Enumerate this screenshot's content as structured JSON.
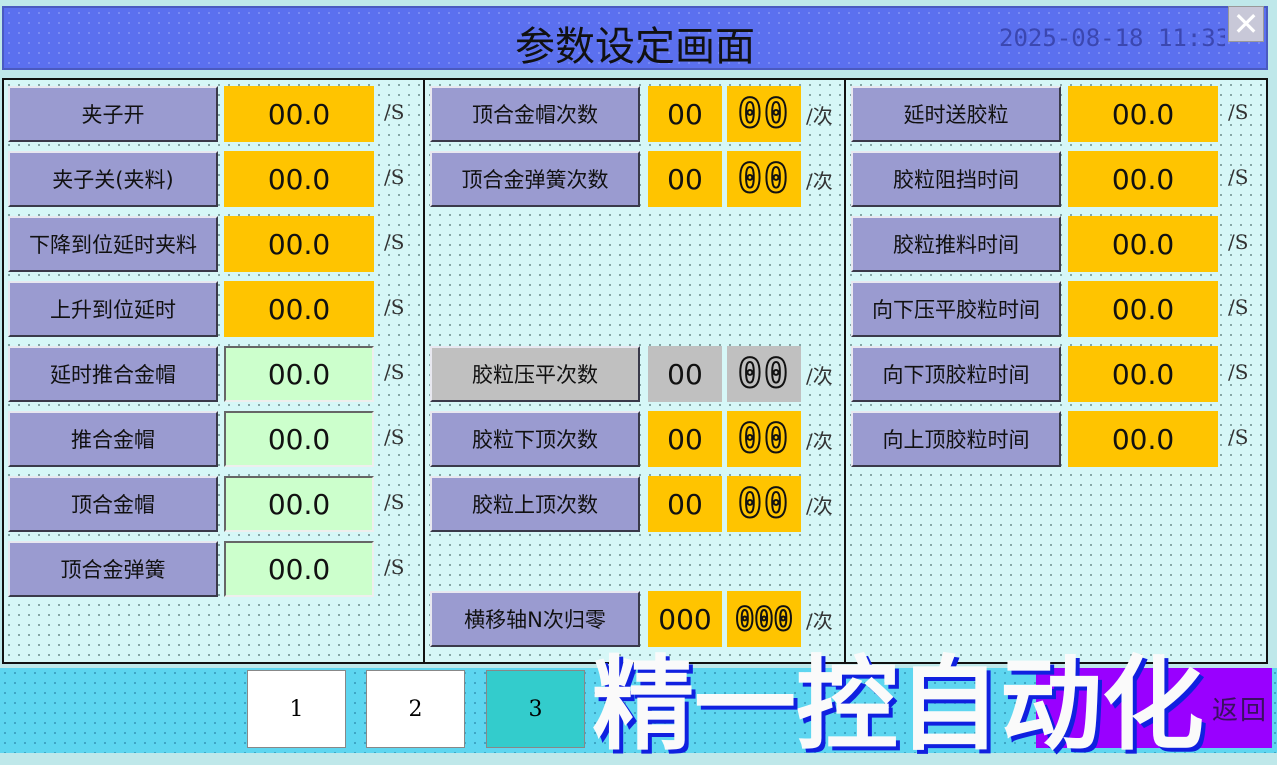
{
  "header": {
    "title": "参数设定画面",
    "datetime": "2025-08-18 11:33:",
    "close_icon": "close-icon"
  },
  "left": [
    {
      "label": "夹子开",
      "value": "00.0",
      "unit": "/S",
      "style": "yellow"
    },
    {
      "label": "夹子关(夹料)",
      "value": "00.0",
      "unit": "/S",
      "style": "yellow"
    },
    {
      "label": "下降到位延时夹料",
      "value": "00.0",
      "unit": "/S",
      "style": "yellow"
    },
    {
      "label": "上升到位延时",
      "value": "00.0",
      "unit": "/S",
      "style": "yellow"
    },
    {
      "label": "延时推合金帽",
      "value": "00.0",
      "unit": "/S",
      "style": "green"
    },
    {
      "label": "推合金帽",
      "value": "00.0",
      "unit": "/S",
      "style": "green"
    },
    {
      "label": "顶合金帽",
      "value": "00.0",
      "unit": "/S",
      "style": "green"
    },
    {
      "label": "顶合金弹簧",
      "value": "00.0",
      "unit": "/S",
      "style": "green"
    }
  ],
  "middle": [
    {
      "label": "顶合金帽次数",
      "value": "00",
      "counter": "00",
      "unit": "/次",
      "style": "yellow"
    },
    {
      "label": "顶合金弹簧次数",
      "value": "00",
      "counter": "00",
      "unit": "/次",
      "style": "yellow"
    },
    {
      "label": "胶粒压平次数",
      "value": "00",
      "counter": "00",
      "unit": "/次",
      "style": "gray"
    },
    {
      "label": "胶粒下顶次数",
      "value": "00",
      "counter": "00",
      "unit": "/次",
      "style": "yellow"
    },
    {
      "label": "胶粒上顶次数",
      "value": "00",
      "counter": "00",
      "unit": "/次",
      "style": "yellow"
    },
    {
      "label": "横移轴N次归零",
      "value": "000",
      "counter": "000",
      "unit": "/次",
      "style": "yellow"
    }
  ],
  "right": [
    {
      "label": "延时送胶粒",
      "value": "00.0",
      "unit": "/S"
    },
    {
      "label": "胶粒阻挡时间",
      "value": "00.0",
      "unit": "/S"
    },
    {
      "label": "胶粒推料时间",
      "value": "00.0",
      "unit": "/S"
    },
    {
      "label": "向下压平胶粒时间",
      "value": "00.0",
      "unit": "/S"
    },
    {
      "label": "向下顶胶粒时间",
      "value": "00.0",
      "unit": "/S"
    },
    {
      "label": "向上顶胶粒时间",
      "value": "00.0",
      "unit": "/S"
    }
  ],
  "footer": {
    "pages": [
      "1",
      "2",
      "3"
    ],
    "active_page": "3",
    "back_label": "返回",
    "watermark": "精一控自动化"
  },
  "colors": {
    "title_bar": "#5b70ef",
    "label": "#9a9bd0",
    "value": "#ffc400",
    "value_green": "#ccffcc",
    "active_page": "#33cccc",
    "back": "#9900ff"
  }
}
